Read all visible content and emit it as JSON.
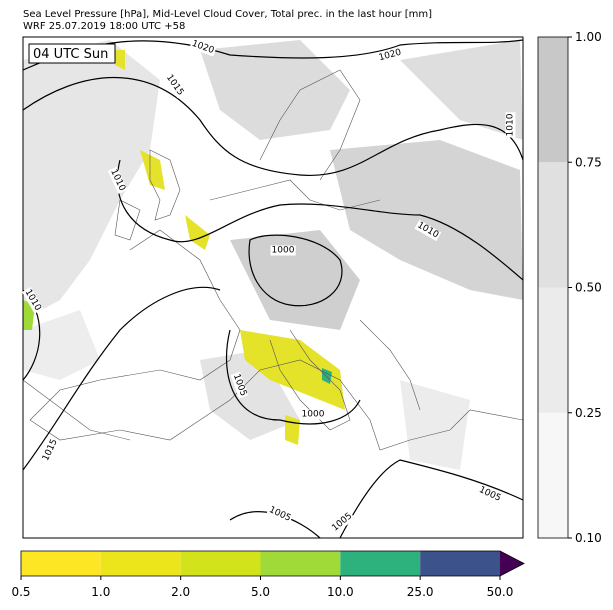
{
  "header": {
    "title": "Sea Level Pressure [hPa], Mid-Level Cloud Cover, Total prec. in the last hour [mm]",
    "subtitle": "WRF 25.07.2019 18:00 UTC +58"
  },
  "map": {
    "annotation": "04 UTC Sun",
    "isobar_labels": [
      "1020",
      "1015",
      "1020",
      "1010",
      "1010",
      "1010",
      "1000",
      "1010",
      "1005",
      "1000",
      "1015",
      "1005",
      "1005",
      "1005"
    ],
    "cloud_colorbar": {
      "colors": [
        "#f7f7f7",
        "#ebebeb",
        "#e0e0e0",
        "#c8c8c8"
      ],
      "ticks": [
        {
          "value": 0.1,
          "label": "0.10"
        },
        {
          "value": 0.25,
          "label": "0.25"
        },
        {
          "value": 0.5,
          "label": "0.50"
        },
        {
          "value": 0.75,
          "label": "0.75"
        },
        {
          "value": 1,
          "label": "1.00"
        }
      ]
    },
    "precip_colorbar": {
      "colors": [
        "#fde725",
        "#ece51b",
        "#d2e21b",
        "#a0da39",
        "#2db27d",
        "#3b528b"
      ],
      "extend_color": "#440154",
      "ticks": [
        0.5,
        {
          "value": 1,
          "label": "1.0"
        },
        {
          "value": 2,
          "label": "2.0"
        },
        {
          "value": 5,
          "label": "5.0"
        },
        {
          "value": 10,
          "label": "10.0"
        },
        {
          "value": 25,
          "label": "25.0"
        },
        {
          "value": 50,
          "label": "50.0"
        }
      ]
    }
  }
}
